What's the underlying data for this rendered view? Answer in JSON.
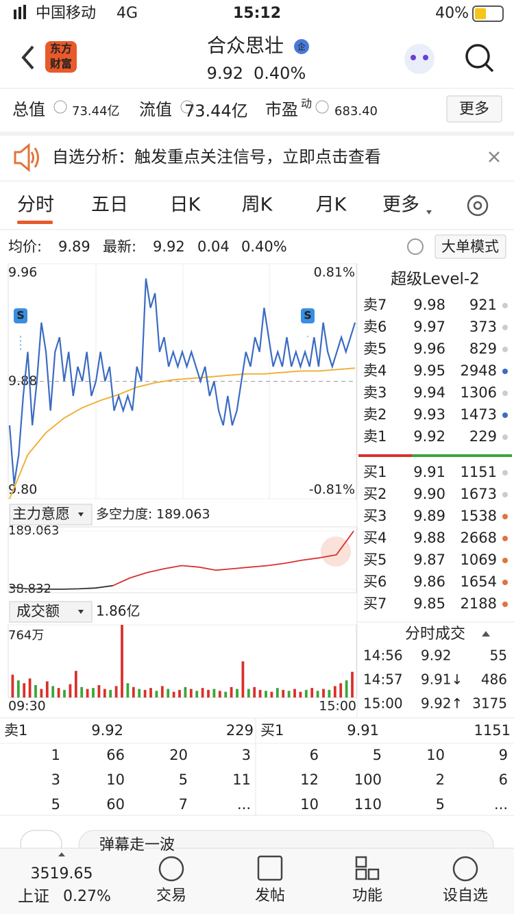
{
  "status": {
    "carrier": "中国移动",
    "network": "4G",
    "time": "15:12",
    "battery": "40%"
  },
  "header": {
    "logo": [
      "东方",
      "财富"
    ],
    "title": "合众思壮",
    "badge": "企",
    "price": "9.92",
    "change_pct": "0.40%"
  },
  "stats": [
    {
      "label": "总值",
      "value": "73.44亿"
    },
    {
      "label": "流值",
      "value": "73.44亿"
    },
    {
      "label": "市盈",
      "sup": "动",
      "value": "683.40"
    }
  ],
  "more": "更多",
  "notice": "自选分析：触发重点关注信号，立即点击查看",
  "tabs": [
    "分时",
    "五日",
    "日K",
    "周K",
    "月K",
    "更多"
  ],
  "quote_line": {
    "avg_label": "均价:",
    "avg": "9.89",
    "last_label": "最新:",
    "last": "9.92",
    "change": "0.04",
    "change_pct": "0.40%",
    "mode_button": "大单模式"
  },
  "price_chart": {
    "ylim": [
      9.8,
      9.96
    ],
    "yticks": [
      9.96,
      9.88,
      {
        "value": 9.8,
        "label": "9.80"
      }
    ],
    "right_labels": [
      "0.81%",
      "-0.81%"
    ],
    "signal": "S",
    "price": [
      9.85,
      9.81,
      9.83,
      9.87,
      9.9,
      9.85,
      9.88,
      9.92,
      9.9,
      9.86,
      9.9,
      9.91,
      9.88,
      9.9,
      9.87,
      9.89,
      9.88,
      9.9,
      9.87,
      9.88,
      9.9,
      9.88,
      9.89,
      9.86,
      9.87,
      9.86,
      9.87,
      9.86,
      9.89,
      9.88,
      9.95,
      9.93,
      9.94,
      9.9,
      9.91,
      9.89,
      9.9,
      9.89,
      9.9,
      9.89,
      9.9,
      9.89,
      9.88,
      9.89,
      9.87,
      9.88,
      9.86,
      9.85,
      9.87,
      9.85,
      9.86,
      9.88,
      9.9,
      9.89,
      9.91,
      9.9,
      9.93,
      9.91,
      9.89,
      9.9,
      9.89,
      9.91,
      9.89,
      9.9,
      9.89,
      9.9,
      9.89,
      9.91,
      9.89,
      9.92,
      9.9,
      9.89,
      9.9,
      9.91,
      9.9,
      9.91,
      9.92
    ],
    "avg": [
      9.8,
      9.83,
      9.845,
      9.855,
      9.862,
      9.867,
      9.871,
      9.876,
      9.879,
      9.881,
      9.882,
      9.883,
      9.884,
      9.885,
      9.885,
      9.886,
      9.887,
      9.887,
      9.888,
      9.889
    ]
  },
  "indicator": {
    "selector": "主力意愿",
    "label": "多空力度:",
    "value": "189.063",
    "ylim": [
      30,
      200
    ],
    "yticks": [
      189.063,
      38.832
    ],
    "series": [
      {
        "color": "#333333",
        "values": [
          45,
          40,
          39,
          38.832,
          40,
          42,
          48,
          null,
          null,
          null,
          null,
          null,
          null,
          null,
          null,
          null,
          null,
          null,
          null,
          null,
          null
        ]
      },
      {
        "color": "#d9302c",
        "values": [
          null,
          null,
          null,
          null,
          null,
          null,
          48,
          68,
          82,
          92,
          100,
          96,
          88,
          92,
          96,
          100,
          106,
          114,
          120,
          128,
          189.063
        ]
      }
    ]
  },
  "volume": {
    "selector": "成交额",
    "total": "1.86亿",
    "ylim": [
      0,
      764
    ],
    "yticks": [
      {
        "value": 764,
        "label": "764万"
      }
    ],
    "xlabels": [
      "09:30",
      "15:00"
    ],
    "values": [
      240,
      180,
      150,
      200,
      130,
      90,
      170,
      120,
      100,
      80,
      140,
      280,
      110,
      90,
      100,
      130,
      90,
      80,
      120,
      764,
      150,
      110,
      90,
      80,
      100,
      70,
      120,
      90,
      60,
      80,
      110,
      90,
      70,
      100,
      80,
      90,
      70,
      60,
      110,
      90,
      380,
      90,
      110,
      80,
      70,
      60,
      100,
      80,
      70,
      90,
      60,
      80,
      100,
      70,
      90,
      80,
      120,
      150,
      180,
      270
    ],
    "colors": [
      "#d9302c",
      "#3aa63a",
      "#d9302c",
      "#d9302c",
      "#3aa63a",
      "#d9302c",
      "#d9302c",
      "#3aa63a",
      "#d9302c",
      "#3aa63a",
      "#d9302c",
      "#d9302c",
      "#3aa63a",
      "#d9302c",
      "#3aa63a",
      "#d9302c",
      "#d9302c",
      "#3aa63a",
      "#d9302c",
      "#d9302c",
      "#3aa63a",
      "#d9302c",
      "#3aa63a",
      "#d9302c",
      "#d9302c",
      "#3aa63a",
      "#d9302c",
      "#3aa63a",
      "#d9302c",
      "#d9302c",
      "#3aa63a",
      "#d9302c",
      "#3aa63a",
      "#d9302c",
      "#d9302c",
      "#3aa63a",
      "#d9302c",
      "#3aa63a",
      "#d9302c",
      "#3aa63a",
      "#d9302c",
      "#3aa63a",
      "#d9302c",
      "#d9302c",
      "#3aa63a",
      "#d9302c",
      "#3aa63a",
      "#d9302c",
      "#3aa63a",
      "#d9302c",
      "#d9302c",
      "#3aa63a",
      "#d9302c",
      "#3aa63a",
      "#d9302c",
      "#3aa63a",
      "#d9302c",
      "#d9302c",
      "#3aa63a",
      "#d9302c"
    ]
  },
  "orderbook": {
    "title": "超级Level-2",
    "asks": [
      {
        "label": "卖7",
        "price": "9.98",
        "qty": "921",
        "dot": "#cccccc"
      },
      {
        "label": "卖6",
        "price": "9.97",
        "qty": "373",
        "dot": "#cccccc"
      },
      {
        "label": "卖5",
        "price": "9.96",
        "qty": "829",
        "dot": "#cccccc"
      },
      {
        "label": "卖4",
        "price": "9.95",
        "qty": "2948",
        "dot": "#3d6cc0"
      },
      {
        "label": "卖3",
        "price": "9.94",
        "qty": "1306",
        "dot": "#cccccc"
      },
      {
        "label": "卖2",
        "price": "9.93",
        "qty": "1473",
        "dot": "#3d6cc0"
      },
      {
        "label": "卖1",
        "price": "9.92",
        "qty": "229",
        "dot": "#cccccc"
      }
    ],
    "bids": [
      {
        "label": "买1",
        "price": "9.91",
        "qty": "1151",
        "dot": "#cccccc"
      },
      {
        "label": "买2",
        "price": "9.90",
        "qty": "1673",
        "dot": "#cccccc"
      },
      {
        "label": "买3",
        "price": "9.89",
        "qty": "1538",
        "dot": "#e0743a"
      },
      {
        "label": "买4",
        "price": "9.88",
        "qty": "2668",
        "dot": "#e0743a"
      },
      {
        "label": "买5",
        "price": "9.87",
        "qty": "1069",
        "dot": "#e0743a"
      },
      {
        "label": "买6",
        "price": "9.86",
        "qty": "1654",
        "dot": "#e0743a"
      },
      {
        "label": "买7",
        "price": "9.85",
        "qty": "2188",
        "dot": "#e0743a"
      }
    ]
  },
  "trades": {
    "title": "分时成交",
    "rows": [
      {
        "time": "14:56",
        "price": "9.92",
        "qty": "55",
        "color": "#d9302c"
      },
      {
        "time": "14:57",
        "price": "9.91↓",
        "qty": "486",
        "color": "#3aa63a"
      },
      {
        "time": "15:00",
        "price": "9.92↑",
        "qty": "3175",
        "color": "#d9302c"
      }
    ]
  },
  "queue": {
    "ask": {
      "label": "卖1",
      "price": "9.92",
      "qty": "229",
      "orders": [
        [
          "1",
          "66",
          "20",
          "3"
        ],
        [
          "3",
          "10",
          "5",
          "11"
        ],
        [
          "5",
          "60",
          "7",
          "..."
        ]
      ]
    },
    "bid": {
      "label": "买1",
      "price": "9.91",
      "qty": "1151",
      "orders": [
        [
          "6",
          "5",
          "10",
          "9"
        ],
        [
          "12",
          "100",
          "2",
          "6"
        ],
        [
          "10",
          "110",
          "5",
          "..."
        ]
      ]
    }
  },
  "comment_placeholder": "弹幕走一波",
  "nav": {
    "index_value": "3519.65",
    "index_name": "上证",
    "index_pct": "0.27%",
    "items": [
      "交易",
      "发帖",
      "功能",
      "设自选"
    ]
  }
}
